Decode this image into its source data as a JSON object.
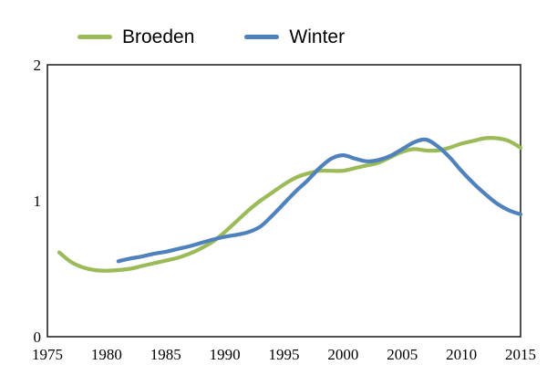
{
  "chart_data": {
    "type": "line",
    "title": "",
    "xlabel": "",
    "ylabel": "",
    "xlim": [
      1975,
      2015
    ],
    "ylim": [
      0,
      2
    ],
    "x_ticks": [
      1975,
      1980,
      1985,
      1990,
      1995,
      2000,
      2005,
      2010,
      2015
    ],
    "y_ticks": [
      0,
      1,
      2
    ],
    "grid": false,
    "plot_border": "full-box",
    "axis_color": "#262626",
    "line_style": "smooth",
    "legend_position": "top-left-above-plot",
    "series": [
      {
        "name": "Broeden",
        "color": "#9BBB59",
        "points": [
          [
            1976,
            0.62
          ],
          [
            1977,
            0.55
          ],
          [
            1978,
            0.51
          ],
          [
            1979,
            0.49
          ],
          [
            1980,
            0.485
          ],
          [
            1981,
            0.49
          ],
          [
            1982,
            0.5
          ],
          [
            1983,
            0.52
          ],
          [
            1984,
            0.54
          ],
          [
            1985,
            0.56
          ],
          [
            1986,
            0.58
          ],
          [
            1987,
            0.61
          ],
          [
            1988,
            0.65
          ],
          [
            1989,
            0.7
          ],
          [
            1990,
            0.77
          ],
          [
            1991,
            0.85
          ],
          [
            1992,
            0.93
          ],
          [
            1993,
            1.0
          ],
          [
            1994,
            1.06
          ],
          [
            1995,
            1.12
          ],
          [
            1996,
            1.17
          ],
          [
            1997,
            1.2
          ],
          [
            1998,
            1.22
          ],
          [
            1999,
            1.22
          ],
          [
            2000,
            1.22
          ],
          [
            2001,
            1.24
          ],
          [
            2002,
            1.26
          ],
          [
            2003,
            1.28
          ],
          [
            2004,
            1.32
          ],
          [
            2005,
            1.36
          ],
          [
            2006,
            1.38
          ],
          [
            2007,
            1.37
          ],
          [
            2008,
            1.37
          ],
          [
            2009,
            1.39
          ],
          [
            2010,
            1.42
          ],
          [
            2011,
            1.44
          ],
          [
            2012,
            1.46
          ],
          [
            2013,
            1.46
          ],
          [
            2014,
            1.44
          ],
          [
            2015,
            1.39
          ]
        ]
      },
      {
        "name": "Winter",
        "color": "#4F81BD",
        "points": [
          [
            1981,
            0.555
          ],
          [
            1982,
            0.575
          ],
          [
            1983,
            0.59
          ],
          [
            1984,
            0.61
          ],
          [
            1985,
            0.625
          ],
          [
            1986,
            0.645
          ],
          [
            1987,
            0.665
          ],
          [
            1988,
            0.69
          ],
          [
            1989,
            0.715
          ],
          [
            1990,
            0.735
          ],
          [
            1991,
            0.75
          ],
          [
            1992,
            0.77
          ],
          [
            1993,
            0.81
          ],
          [
            1994,
            0.89
          ],
          [
            1995,
            0.98
          ],
          [
            1996,
            1.07
          ],
          [
            1997,
            1.15
          ],
          [
            1998,
            1.24
          ],
          [
            1999,
            1.31
          ],
          [
            2000,
            1.335
          ],
          [
            2001,
            1.31
          ],
          [
            2002,
            1.29
          ],
          [
            2003,
            1.3
          ],
          [
            2004,
            1.33
          ],
          [
            2005,
            1.38
          ],
          [
            2006,
            1.43
          ],
          [
            2007,
            1.45
          ],
          [
            2008,
            1.4
          ],
          [
            2009,
            1.32
          ],
          [
            2010,
            1.22
          ],
          [
            2011,
            1.13
          ],
          [
            2012,
            1.05
          ],
          [
            2013,
            0.98
          ],
          [
            2014,
            0.93
          ],
          [
            2015,
            0.9
          ]
        ]
      }
    ]
  }
}
